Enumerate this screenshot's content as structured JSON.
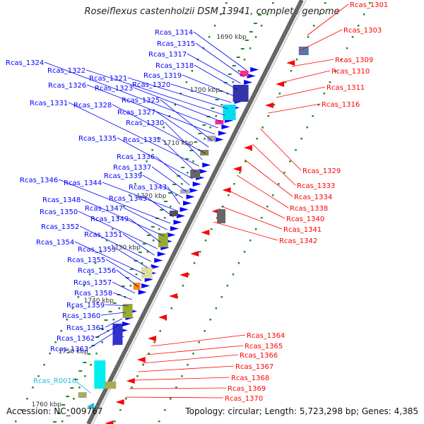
{
  "title": "Roseiflexus castenholzii DSM 13941, complete genome",
  "accession": "Accession: NC_009767",
  "topology": "Topology: circular; Length: 5,723,298 bp; Genes: 4,385",
  "kbp_labels": [
    "1690 kbp",
    "1700 kbp",
    "1710 kbp",
    "1720 kbp",
    "1730 kbp",
    "1740 kbp",
    "1750 kbp",
    "1760 kbp"
  ],
  "left_genes": [
    "Rcas_1314",
    "Rcas_1315",
    "Rcas_1317",
    "Rcas_1318",
    "Rcas_1319",
    "Rcas_1320",
    "Rcas_1321",
    "Rcas_1322",
    "Rcas_1323",
    "Rcas_1324",
    "Rcas_1326",
    "Rcas_1325",
    "Rcas_1327",
    "Rcas_1328",
    "Rcas_1330",
    "Rcas_1331",
    "Rcas_1332",
    "Rcas_1335",
    "Rcas_1336",
    "Rcas_1337",
    "Rcas_1339",
    "Rcas_1343",
    "Rcas_1344",
    "Rcas_1345",
    "Rcas_1346",
    "Rcas_1347",
    "Rcas_1348",
    "Rcas_1349",
    "Rcas_1350",
    "Rcas_1351",
    "Rcas_1352",
    "Rcas_1353",
    "Rcas_1354",
    "Rcas_1355",
    "Rcas_1356",
    "Rcas_1357",
    "Rcas_1358",
    "Rcas_1359",
    "Rcas_1360",
    "Rcas_1361",
    "Rcas_1362",
    "Rcas_1363"
  ],
  "right_genes": [
    "Rcas_1301",
    "Rcas_1303",
    "Rcas_1309",
    "Rcas_1310",
    "Rcas_1311",
    "Rcas_1316",
    "Rcas_1329",
    "Rcas_1333",
    "Rcas_1334",
    "Rcas_1338",
    "Rcas_1340",
    "Rcas_1341",
    "Rcas_1342",
    "Rcas_1364",
    "Rcas_1365",
    "Rcas_1366",
    "Rcas_1367",
    "Rcas_1368",
    "Rcas_1369",
    "Rcas_1370"
  ],
  "rna_genes": [
    "Rcas_R0016"
  ],
  "colors": {
    "forward": "#0000ff",
    "reverse": "#ff0000",
    "rna": "#22bbdd",
    "backbone": "#888888",
    "tick": "#228822"
  }
}
